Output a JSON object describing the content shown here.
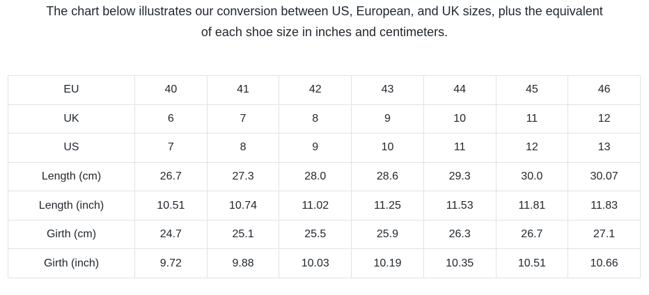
{
  "page": {
    "background_color": "#ffffff",
    "text_color": "#1f252c",
    "border_color": "#e1e2e3"
  },
  "intro": {
    "lines": [
      "The chart below illustrates our conversion between US, European, and UK sizes, plus the equivalent",
      "of each shoe size in inches and centimeters."
    ]
  },
  "chart_data": {
    "type": "table",
    "rows": [
      {
        "label": "EU",
        "values": [
          "40",
          "41",
          "42",
          "43",
          "44",
          "45",
          "46"
        ]
      },
      {
        "label": "UK",
        "values": [
          "6",
          "7",
          "8",
          "9",
          "10",
          "11",
          "12"
        ]
      },
      {
        "label": "US",
        "values": [
          "7",
          "8",
          "9",
          "10",
          "11",
          "12",
          "13"
        ]
      },
      {
        "label": "Length (cm)",
        "values": [
          "26.7",
          "27.3",
          "28.0",
          "28.6",
          "29.3",
          "30.0",
          "30.07"
        ]
      },
      {
        "label": "Length (inch)",
        "values": [
          "10.51",
          "10.74",
          "11.02",
          "11.25",
          "11.53",
          "11.81",
          "11.83"
        ]
      },
      {
        "label": "Girth (cm)",
        "values": [
          "24.7",
          "25.1",
          "25.5",
          "25.9",
          "26.3",
          "26.7",
          "27.1"
        ]
      },
      {
        "label": "Girth (inch)",
        "values": [
          "9.72",
          "9.88",
          "10.03",
          "10.19",
          "10.35",
          "10.51",
          "10.66"
        ]
      }
    ]
  }
}
